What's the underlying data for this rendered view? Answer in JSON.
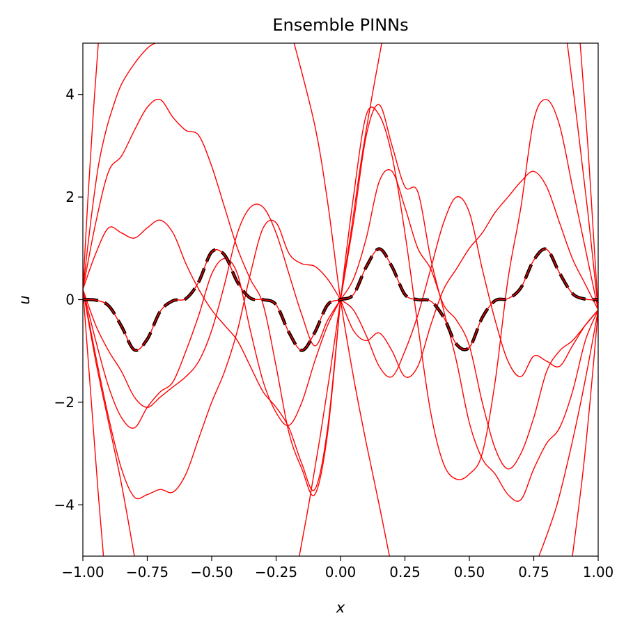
{
  "chart_data": {
    "type": "line",
    "title": "Ensemble PINNs",
    "xlabel": "x",
    "ylabel": "u",
    "xlim": [
      -1.0,
      1.0
    ],
    "ylim": [
      -5,
      5
    ],
    "grid": false,
    "x_ticks": [
      -1.0,
      -0.75,
      -0.5,
      -0.25,
      0.0,
      0.25,
      0.5,
      0.75,
      1.0
    ],
    "x_tick_labels": [
      "−1.00",
      "−0.75",
      "−0.50",
      "−0.25",
      "0.00",
      "0.25",
      "0.50",
      "0.75",
      "1.00"
    ],
    "y_ticks": [
      -4,
      -2,
      0,
      2,
      4
    ],
    "y_tick_labels": [
      "−4",
      "−2",
      "0",
      "2",
      "4"
    ],
    "colors": {
      "ensemble": "#ff0000",
      "reference": "#000000"
    },
    "reference": {
      "style": "dashed",
      "x": [
        -1.0,
        -0.95,
        -0.9,
        -0.85,
        -0.8,
        -0.75,
        -0.7,
        -0.65,
        -0.6,
        -0.55,
        -0.5,
        -0.45,
        -0.4,
        -0.35,
        -0.3,
        -0.25,
        -0.2,
        -0.15,
        -0.1,
        -0.05,
        0.0,
        0.05,
        0.1,
        0.15,
        0.2,
        0.25,
        0.3,
        0.35,
        0.4,
        0.45,
        0.5,
        0.55,
        0.6,
        0.65,
        0.7,
        0.75,
        0.8,
        0.85,
        0.9,
        0.95,
        1.0
      ],
      "y": [
        0.0,
        -0.01,
        -0.12,
        -0.52,
        -0.98,
        -0.77,
        -0.23,
        -0.02,
        0.02,
        0.35,
        0.93,
        0.87,
        0.34,
        0.03,
        0.0,
        -0.1,
        -0.64,
        -0.99,
        -0.64,
        -0.1,
        0.0,
        0.1,
        0.64,
        0.99,
        0.64,
        0.1,
        0.0,
        -0.03,
        -0.34,
        -0.87,
        -0.93,
        -0.35,
        -0.02,
        0.02,
        0.23,
        0.77,
        0.98,
        0.52,
        0.12,
        0.01,
        0.0
      ]
    },
    "series": [
      {
        "x": [
          -1.0,
          -0.97,
          -0.94,
          -0.92
        ],
        "y": [
          0.2,
          -1.8,
          -3.8,
          -5.0
        ]
      },
      {
        "x": [
          -1.0,
          -0.95,
          -0.9,
          -0.85,
          -0.8
        ],
        "y": [
          0.2,
          -1.2,
          -2.4,
          -3.6,
          -5.0
        ]
      },
      {
        "x": [
          -1.0,
          -0.95,
          -0.9,
          -0.85,
          -0.8,
          -0.75,
          -0.7,
          -0.65,
          -0.6,
          -0.55,
          -0.5,
          -0.45,
          -0.4,
          -0.35,
          -0.3,
          -0.25,
          -0.2,
          -0.15,
          -0.1,
          -0.05,
          0.0
        ],
        "y": [
          0.2,
          -1.1,
          -2.3,
          -3.3,
          -3.85,
          -3.8,
          -3.7,
          -3.75,
          -3.4,
          -2.7,
          -2.0,
          -1.4,
          -0.6,
          0.5,
          1.4,
          1.5,
          0.9,
          0.7,
          0.65,
          0.4,
          0.0
        ]
      },
      {
        "x": [
          -1.0,
          -0.95,
          -0.9,
          -0.85,
          -0.8,
          -0.75,
          -0.7,
          -0.65,
          -0.6,
          -0.55,
          -0.5,
          -0.45,
          -0.4,
          -0.35,
          -0.3,
          -0.25,
          -0.2,
          -0.15,
          -0.1,
          -0.05,
          0.0
        ],
        "y": [
          0.2,
          -0.8,
          -1.7,
          -2.3,
          -2.5,
          -2.1,
          -1.8,
          -1.6,
          -1.0,
          -0.3,
          0.5,
          0.8,
          0.5,
          -0.6,
          -1.6,
          -2.2,
          -2.45,
          -2.0,
          -1.2,
          -0.5,
          0.0
        ]
      },
      {
        "x": [
          -1.0,
          -0.95,
          -0.9,
          -0.85,
          -0.8,
          -0.75,
          -0.7,
          -0.65,
          -0.6,
          -0.55,
          -0.5,
          -0.45,
          -0.4,
          -0.35,
          -0.3,
          -0.25,
          -0.2,
          -0.15,
          -0.1,
          -0.05,
          0.0
        ],
        "y": [
          0.2,
          -0.5,
          -1.0,
          -1.4,
          -1.9,
          -2.1,
          -1.9,
          -1.7,
          -1.5,
          -1.2,
          -0.6,
          0.3,
          1.3,
          1.8,
          1.8,
          1.3,
          0.5,
          -0.3,
          -0.9,
          -0.4,
          0.0
        ]
      },
      {
        "x": [
          -1.0,
          -0.95,
          -0.9,
          -0.85,
          -0.8,
          -0.75,
          -0.7,
          -0.65,
          -0.6,
          -0.55,
          -0.5,
          -0.45,
          -0.4,
          -0.35,
          -0.3,
          -0.25,
          -0.2,
          -0.15,
          -0.1,
          -0.05,
          0.0
        ],
        "y": [
          0.2,
          0.9,
          1.4,
          1.3,
          1.2,
          1.4,
          1.55,
          1.3,
          0.7,
          0.2,
          -0.2,
          -0.5,
          -0.8,
          -1.3,
          -1.8,
          -2.1,
          -2.5,
          -3.2,
          -3.7,
          -2.5,
          0.0
        ]
      },
      {
        "x": [
          -1.0,
          -0.95,
          -0.9,
          -0.85,
          -0.8,
          -0.75,
          -0.7,
          -0.65,
          -0.6,
          -0.55,
          -0.5,
          -0.45,
          -0.4,
          -0.35,
          -0.3,
          -0.25,
          -0.2,
          -0.15,
          -0.1,
          -0.05,
          0.0
        ],
        "y": [
          0.2,
          1.5,
          2.5,
          2.8,
          3.3,
          3.75,
          3.9,
          3.55,
          3.3,
          3.2,
          2.6,
          1.8,
          1.0,
          0.4,
          -0.1,
          -1.3,
          -2.6,
          -3.3,
          -3.8,
          -2.6,
          0.0
        ]
      },
      {
        "x": [
          -1.0,
          -0.97,
          -0.94,
          -0.91,
          -0.88,
          -0.85,
          -0.8,
          -0.75,
          -0.72
        ],
        "y": [
          0.2,
          1.5,
          2.6,
          3.3,
          3.8,
          4.2,
          4.6,
          4.9,
          5.0
        ]
      },
      {
        "x": [
          -1.0,
          -0.98,
          -0.96,
          -0.94
        ],
        "y": [
          0.2,
          2.0,
          3.6,
          5.0
        ]
      },
      {
        "x": [
          -0.18,
          -0.1,
          -0.05,
          0.0,
          0.05,
          0.1,
          0.15,
          0.19
        ],
        "y": [
          5.0,
          3.4,
          1.9,
          0.0,
          -1.5,
          -2.8,
          -4.0,
          -5.0
        ]
      },
      {
        "x": [
          -0.16,
          -0.12,
          -0.08,
          -0.04,
          0.0,
          0.04,
          0.08,
          0.12,
          0.16
        ],
        "y": [
          -5.0,
          -3.9,
          -2.7,
          -1.4,
          0.0,
          1.3,
          2.7,
          3.9,
          5.0
        ]
      },
      {
        "x": [
          0.0,
          0.05,
          0.1,
          0.15,
          0.2,
          0.25,
          0.3,
          0.35,
          0.4,
          0.45,
          0.5,
          0.55,
          0.6,
          0.65,
          0.7,
          0.75,
          0.8,
          0.85,
          0.9,
          0.95,
          1.0
        ],
        "y": [
          0.0,
          1.5,
          3.2,
          3.8,
          3.0,
          2.2,
          2.1,
          0.8,
          -0.2,
          -1.2,
          -2.4,
          -3.1,
          -3.4,
          -3.8,
          -3.9,
          -3.3,
          -2.8,
          -2.5,
          -1.8,
          -0.8,
          -0.2
        ]
      },
      {
        "x": [
          0.0,
          0.05,
          0.1,
          0.15,
          0.2,
          0.25,
          0.3,
          0.35,
          0.4,
          0.45,
          0.5,
          0.55,
          0.6,
          0.65,
          0.7,
          0.75,
          0.8,
          0.85,
          0.9,
          0.95,
          1.0
        ],
        "y": [
          0.0,
          0.4,
          1.2,
          2.3,
          2.5,
          1.8,
          1.0,
          0.6,
          -0.1,
          -0.4,
          -0.9,
          -2.0,
          -2.9,
          -3.3,
          -3.0,
          -2.3,
          -1.4,
          -1.0,
          -0.8,
          -0.5,
          -0.2
        ]
      },
      {
        "x": [
          0.0,
          0.05,
          0.1,
          0.15,
          0.2,
          0.25,
          0.3,
          0.35,
          0.4,
          0.45,
          0.5,
          0.55,
          0.6,
          0.65,
          0.7,
          0.75,
          0.8,
          0.85,
          0.9,
          0.95,
          1.0
        ],
        "y": [
          0.0,
          -0.6,
          -0.8,
          -0.65,
          -1.0,
          -1.5,
          -1.3,
          -0.5,
          0.2,
          0.6,
          1.0,
          1.3,
          1.7,
          2.0,
          2.3,
          2.5,
          2.2,
          1.5,
          0.8,
          0.3,
          -0.2
        ]
      },
      {
        "x": [
          0.0,
          0.05,
          0.1,
          0.15,
          0.2,
          0.25,
          0.3,
          0.35,
          0.4,
          0.45,
          0.5,
          0.55,
          0.6,
          0.65,
          0.7,
          0.75,
          0.8,
          0.85,
          0.9,
          0.95,
          1.0
        ],
        "y": [
          0.0,
          -0.2,
          -0.7,
          -1.3,
          -1.5,
          -1.0,
          -0.3,
          0.6,
          1.5,
          2.0,
          1.7,
          0.6,
          -0.4,
          -1.2,
          -1.5,
          -1.1,
          -1.2,
          -1.3,
          -0.9,
          -0.5,
          -0.2
        ]
      },
      {
        "x": [
          0.0,
          0.05,
          0.1,
          0.15,
          0.2,
          0.25,
          0.3,
          0.35,
          0.4,
          0.45,
          0.5,
          0.55,
          0.6,
          0.65,
          0.7,
          0.75,
          0.8,
          0.85,
          0.9,
          0.95,
          1.0
        ],
        "y": [
          0.0,
          2.0,
          3.6,
          3.6,
          2.8,
          1.3,
          -0.5,
          -2.2,
          -3.2,
          -3.5,
          -3.4,
          -3.0,
          -1.6,
          0.4,
          1.8,
          3.5,
          3.9,
          3.4,
          2.2,
          1.0,
          -0.2
        ]
      },
      {
        "x": [
          0.77,
          0.8,
          0.84,
          0.88,
          0.92,
          0.96,
          1.0
        ],
        "y": [
          -5.0,
          -4.6,
          -4.0,
          -3.2,
          -2.3,
          -1.3,
          -0.2
        ]
      },
      {
        "x": [
          0.9,
          0.94,
          0.97,
          1.0
        ],
        "y": [
          -5.0,
          -3.4,
          -1.9,
          -0.2
        ]
      },
      {
        "x": [
          0.88,
          0.92,
          0.96,
          1.0
        ],
        "y": [
          5.0,
          3.4,
          1.7,
          -0.2
        ]
      },
      {
        "x": [
          0.93,
          0.96,
          0.98,
          1.0
        ],
        "y": [
          5.0,
          3.0,
          1.4,
          -0.2
        ]
      }
    ]
  }
}
